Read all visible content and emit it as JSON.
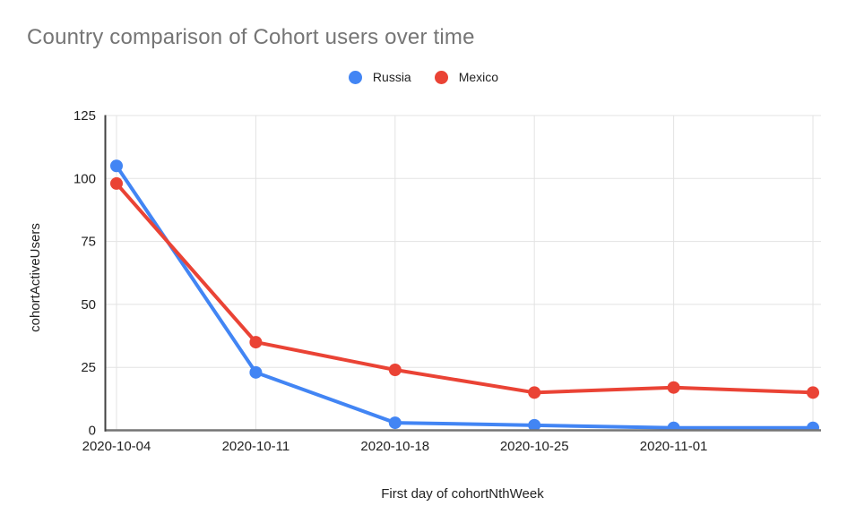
{
  "chart": {
    "title": "Country comparison of Cohort users over time",
    "xlabel": "First day of cohortNthWeek",
    "ylabel": "cohortActiveUsers"
  },
  "legend": {
    "items": [
      {
        "label": "Russia",
        "color": "#4285F4"
      },
      {
        "label": "Mexico",
        "color": "#EA4335"
      }
    ]
  },
  "chart_data": {
    "type": "line",
    "title": "Country comparison of Cohort users over time",
    "xlabel": "First day of cohortNthWeek",
    "ylabel": "cohortActiveUsers",
    "x_tick_labels": [
      "2020-10-04",
      "2020-10-11",
      "2020-10-18",
      "2020-10-25",
      "2020-11-01",
      ""
    ],
    "y_ticks": [
      0,
      25,
      50,
      75,
      100,
      125
    ],
    "ylim": [
      0,
      125
    ],
    "grid": true,
    "legend_position": "top-center",
    "marker": "circle",
    "series": [
      {
        "name": "Russia",
        "color": "#4285F4",
        "values": [
          105,
          23,
          3,
          2,
          1,
          1
        ]
      },
      {
        "name": "Mexico",
        "color": "#EA4335",
        "values": [
          98,
          35,
          24,
          15,
          17,
          15
        ]
      }
    ]
  },
  "colors": {
    "title_text": "#757575",
    "axis_text": "#222222",
    "gridline": "#e3e3e3",
    "baseline": "#757575",
    "y_axis_line": "#424242",
    "background": "#ffffff"
  }
}
